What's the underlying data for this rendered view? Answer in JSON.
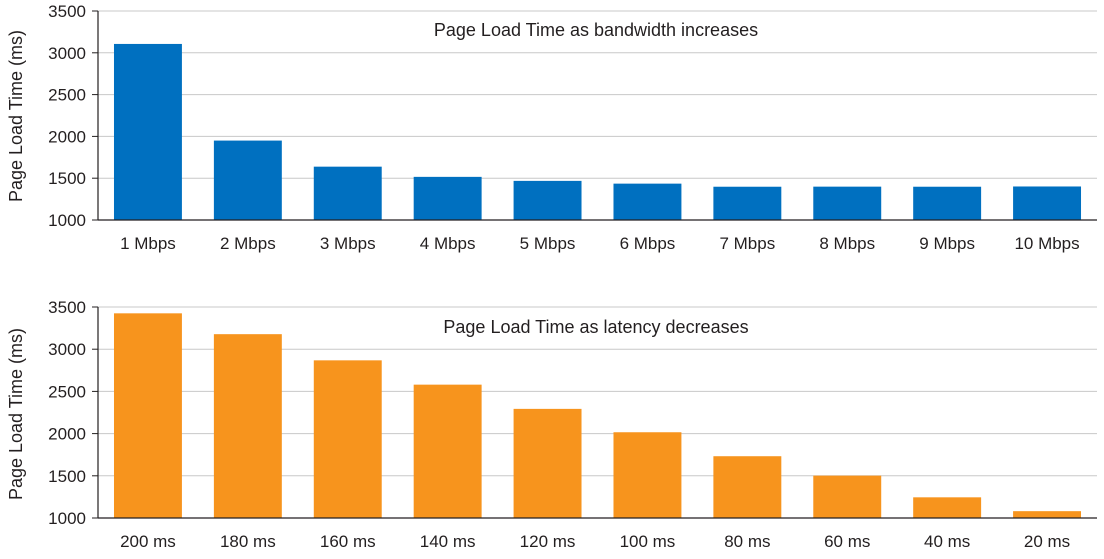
{
  "chart_data": [
    {
      "type": "bar",
      "title": "Page Load Time as bandwidth increases",
      "ylabel": "Page Load Time (ms)",
      "xlabel": "",
      "ylim": [
        1000,
        3500
      ],
      "yticks": [
        1000,
        1500,
        2000,
        2500,
        3000,
        3500
      ],
      "grid": true,
      "color": "#0070c0",
      "categories": [
        "1 Mbps",
        "2 Mbps",
        "3 Mbps",
        "4 Mbps",
        "5 Mbps",
        "6 Mbps",
        "7 Mbps",
        "8 Mbps",
        "9 Mbps",
        "10 Mbps"
      ],
      "values": [
        3106,
        1950,
        1638,
        1516,
        1468,
        1435,
        1398,
        1399,
        1398,
        1401
      ]
    },
    {
      "type": "bar",
      "title": "Page Load Time as latency decreases",
      "ylabel": "Page Load Time (ms)",
      "xlabel": "",
      "ylim": [
        1000,
        3500
      ],
      "yticks": [
        1000,
        1500,
        2000,
        2500,
        3000,
        3500
      ],
      "grid": true,
      "color": "#f7941d",
      "categories": [
        "200 ms",
        "180 ms",
        "160 ms",
        "140 ms",
        "120 ms",
        "100 ms",
        "80 ms",
        "60 ms",
        "40 ms",
        "20 ms"
      ],
      "values": [
        3425,
        3178,
        2868,
        2580,
        2293,
        2016,
        1732,
        1502,
        1245,
        1081
      ]
    }
  ]
}
